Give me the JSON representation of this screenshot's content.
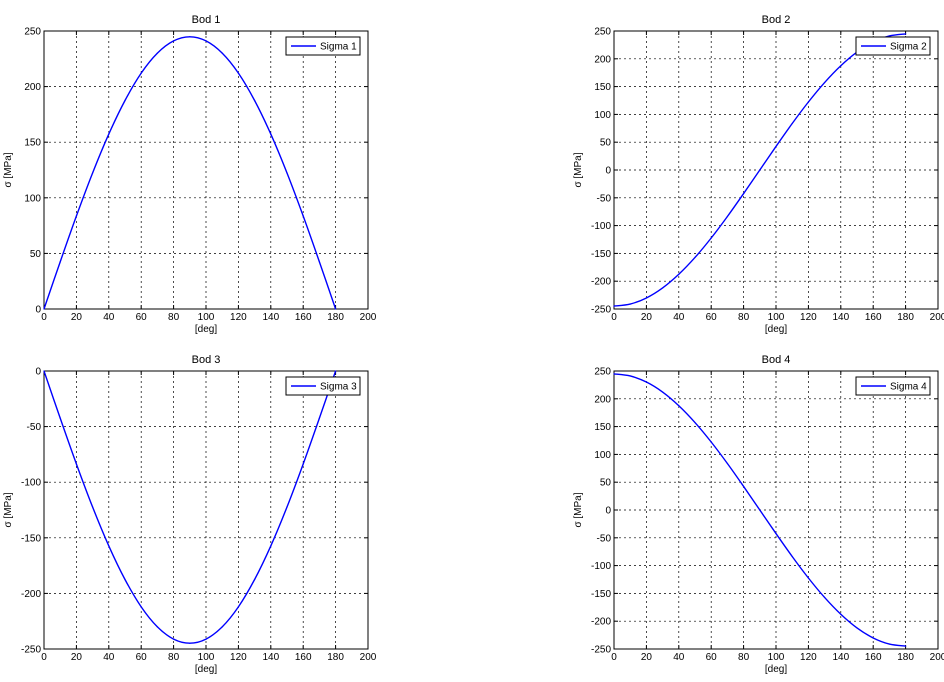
{
  "figure": {
    "background": "#ffffff",
    "line_color": "#0000ff",
    "grid_color": "#000000"
  },
  "chart_data": [
    {
      "type": "line",
      "title": "Bod 1",
      "xlabel": "[deg]",
      "ylabel": "σ [MPa]",
      "xlim": [
        0,
        200
      ],
      "ylim": [
        0,
        250
      ],
      "xticks": [
        0,
        20,
        40,
        60,
        80,
        100,
        120,
        140,
        160,
        180,
        200
      ],
      "yticks": [
        0,
        50,
        100,
        150,
        200,
        250
      ],
      "grid": true,
      "legend_position": "top-right",
      "series": [
        {
          "name": "Sigma 1",
          "x": [
            0,
            10,
            20,
            30,
            40,
            50,
            60,
            70,
            80,
            90,
            100,
            110,
            120,
            130,
            140,
            150,
            160,
            170,
            180
          ],
          "y": [
            0,
            42.4,
            83.6,
            122.3,
            157.3,
            187.5,
            212.1,
            230.1,
            241.1,
            244.8,
            241.1,
            230.1,
            212.1,
            187.5,
            157.3,
            122.3,
            83.6,
            42.4,
            0
          ]
        }
      ]
    },
    {
      "type": "line",
      "title": "Bod 2",
      "xlabel": "[deg]",
      "ylabel": "σ [MPa]",
      "xlim": [
        0,
        200
      ],
      "ylim": [
        -250,
        250
      ],
      "xticks": [
        0,
        20,
        40,
        60,
        80,
        100,
        120,
        140,
        160,
        180,
        200
      ],
      "yticks": [
        -250,
        -200,
        -150,
        -100,
        -50,
        0,
        50,
        100,
        150,
        200,
        250
      ],
      "grid": true,
      "legend_position": "top-right",
      "series": [
        {
          "name": "Sigma 2",
          "x": [
            0,
            10,
            20,
            30,
            40,
            50,
            60,
            70,
            80,
            90,
            100,
            110,
            120,
            130,
            140,
            150,
            160,
            170,
            180
          ],
          "y": [
            -244.8,
            -241.1,
            -230.1,
            -212.1,
            -187.5,
            -157.3,
            -122.3,
            -83.6,
            -42.4,
            0,
            42.4,
            83.6,
            122.3,
            157.3,
            187.5,
            212.1,
            230.1,
            241.1,
            244.8
          ]
        }
      ]
    },
    {
      "type": "line",
      "title": "Bod 3",
      "xlabel": "[deg]",
      "ylabel": "σ [MPa]",
      "xlim": [
        0,
        200
      ],
      "ylim": [
        -250,
        0
      ],
      "xticks": [
        0,
        20,
        40,
        60,
        80,
        100,
        120,
        140,
        160,
        180,
        200
      ],
      "yticks": [
        -250,
        -200,
        -150,
        -100,
        -50,
        0
      ],
      "grid": true,
      "legend_position": "top-right",
      "series": [
        {
          "name": "Sigma 3",
          "x": [
            0,
            10,
            20,
            30,
            40,
            50,
            60,
            70,
            80,
            90,
            100,
            110,
            120,
            130,
            140,
            150,
            160,
            170,
            180
          ],
          "y": [
            0,
            -42.4,
            -83.6,
            -122.3,
            -157.3,
            -187.5,
            -212.1,
            -230.1,
            -241.1,
            -244.8,
            -241.1,
            -230.1,
            -212.1,
            -187.5,
            -157.3,
            -122.3,
            -83.6,
            -42.4,
            0
          ]
        }
      ]
    },
    {
      "type": "line",
      "title": "Bod 4",
      "xlabel": "[deg]",
      "ylabel": "σ [MPa]",
      "xlim": [
        0,
        200
      ],
      "ylim": [
        -250,
        250
      ],
      "xticks": [
        0,
        20,
        40,
        60,
        80,
        100,
        120,
        140,
        160,
        180,
        200
      ],
      "yticks": [
        -250,
        -200,
        -150,
        -100,
        -50,
        0,
        50,
        100,
        150,
        200,
        250
      ],
      "grid": true,
      "legend_position": "top-right",
      "series": [
        {
          "name": "Sigma 4",
          "x": [
            0,
            10,
            20,
            30,
            40,
            50,
            60,
            70,
            80,
            90,
            100,
            110,
            120,
            130,
            140,
            150,
            160,
            170,
            180
          ],
          "y": [
            244.8,
            241.1,
            230.1,
            212.1,
            187.5,
            157.3,
            122.3,
            83.6,
            42.4,
            0,
            -42.4,
            -83.6,
            -122.3,
            -157.3,
            -187.5,
            -212.1,
            -230.1,
            -241.1,
            -244.8
          ]
        }
      ]
    }
  ]
}
